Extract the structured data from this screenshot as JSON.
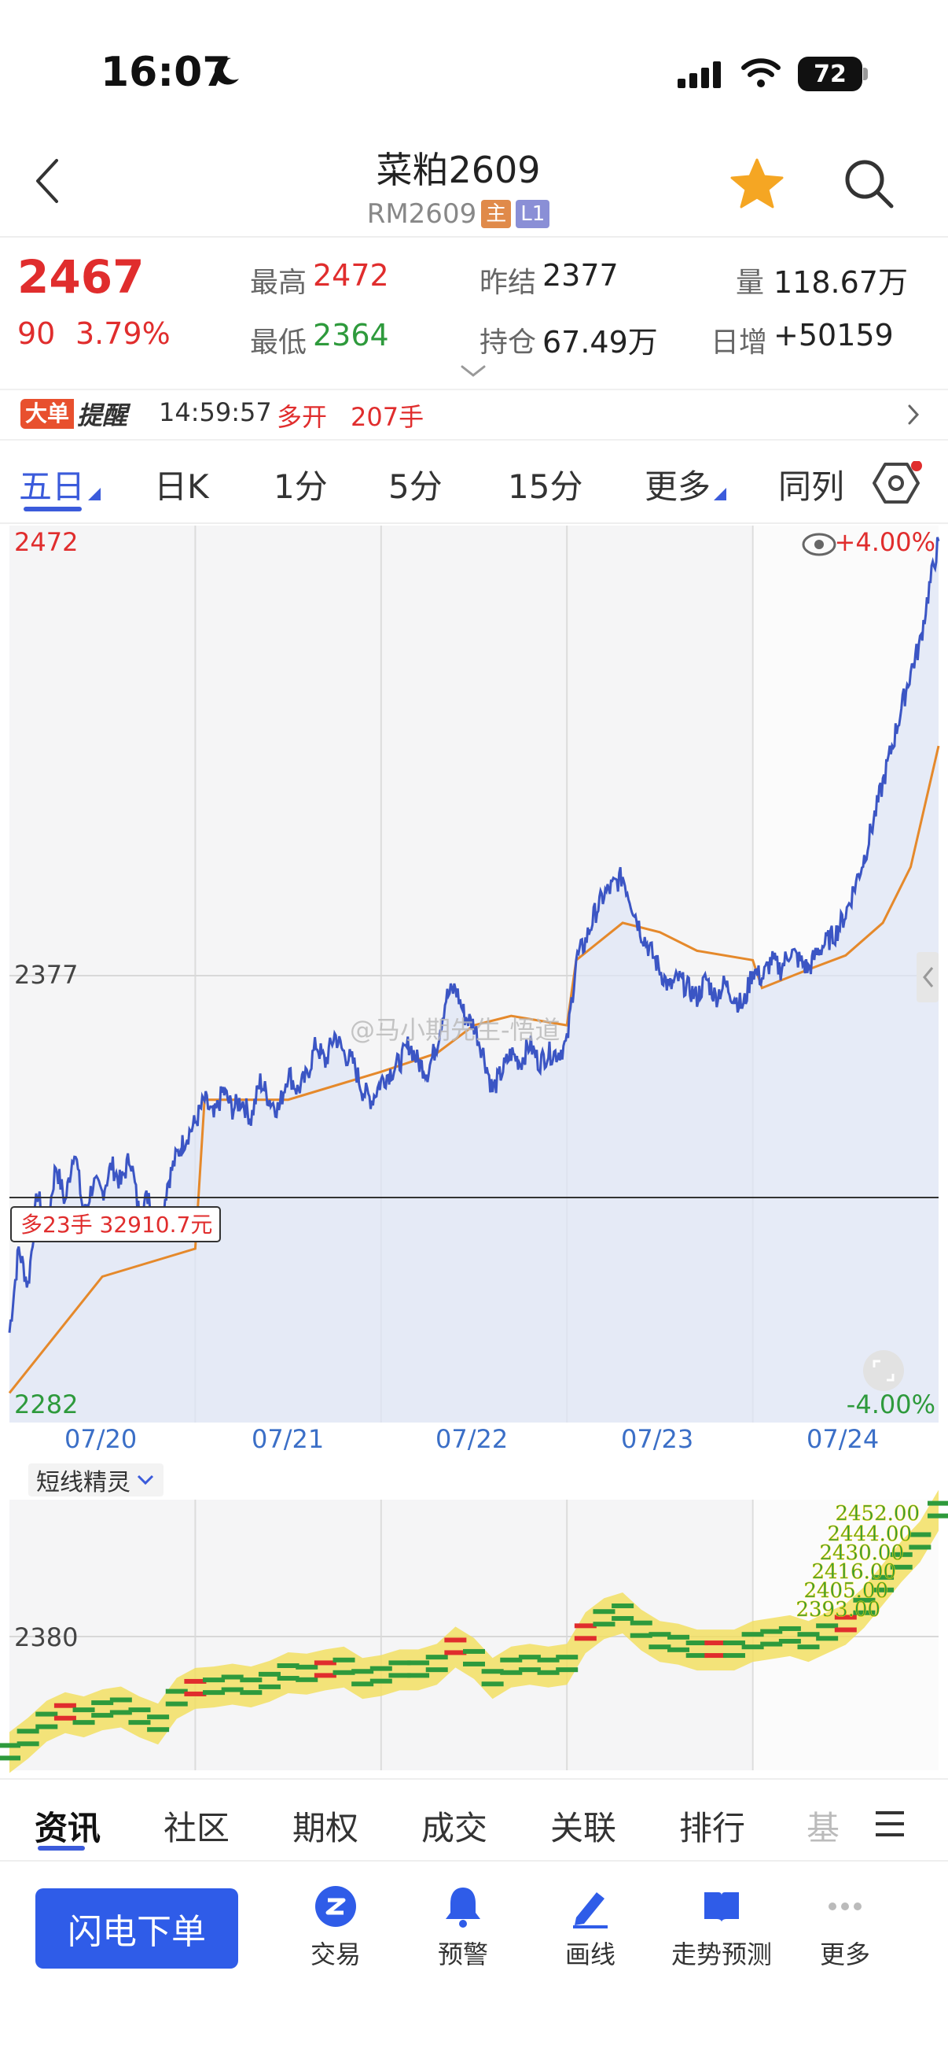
{
  "status_bar": {
    "time": "16:07",
    "battery": "72"
  },
  "header": {
    "title": "菜粕2609",
    "code": "RM2609",
    "tag_main": "主",
    "tag_level": "L1"
  },
  "quote": {
    "price": "2467",
    "change": "90",
    "change_pct": "3.79%",
    "high_label": "最高",
    "high": "2472",
    "low_label": "最低",
    "low": "2364",
    "prev_settle_label": "昨结",
    "prev_settle": "2377",
    "open_interest_label": "持仓",
    "open_interest": "67.49万",
    "volume_label": "量",
    "volume": "118.67万",
    "daily_inc_label": "日增",
    "daily_inc": "+50159"
  },
  "alert": {
    "badge": "大单",
    "badge2": "提醒",
    "time": "14:59:57",
    "action": "多开",
    "qty": "207手"
  },
  "tabs": [
    "五日",
    "日K",
    "1分",
    "5分",
    "15分",
    "更多",
    "同列"
  ],
  "chart": {
    "y_top": "2472",
    "y_mid": "2377",
    "y_bottom": "2282",
    "pct_top": "+4.00%",
    "pct_bottom": "-4.00%",
    "marker_text": "多23手 32910.7元",
    "watermark": "@马小期先生-悟道",
    "dates": [
      "07/20",
      "07/21",
      "07/22",
      "07/23",
      "07/24"
    ],
    "indicator": "短线精灵",
    "indicator_level": "2380",
    "indicator_values": [
      "2452.00",
      "2444.00",
      "2430.00",
      "2416.00",
      "2405.00",
      "2393.00"
    ],
    "colors": {
      "price": "#3b55c4",
      "avg": "#e5892b",
      "up": "#e02d2d",
      "down": "#2e9a3c"
    }
  },
  "chart_data": {
    "type": "line",
    "x": [
      "07/20",
      "07/21",
      "07/22",
      "07/23",
      "07/24"
    ],
    "ylim": [
      2282,
      2472
    ],
    "series": [],
    "price_path": [
      [
        0,
        2300
      ],
      [
        0.05,
        2318
      ],
      [
        0.1,
        2310
      ],
      [
        0.15,
        2330
      ],
      [
        0.2,
        2322
      ],
      [
        0.25,
        2336
      ],
      [
        0.3,
        2328
      ],
      [
        0.35,
        2340
      ],
      [
        0.4,
        2325
      ],
      [
        0.45,
        2332
      ],
      [
        0.5,
        2330
      ],
      [
        0.55,
        2336
      ],
      [
        0.6,
        2332
      ],
      [
        0.65,
        2338
      ],
      [
        0.7,
        2325
      ],
      [
        0.75,
        2330
      ],
      [
        0.8,
        2320
      ],
      [
        0.85,
        2332
      ],
      [
        0.9,
        2338
      ],
      [
        0.95,
        2342
      ],
      [
        1.0,
        2345
      ],
      [
        1.05,
        2350
      ],
      [
        1.1,
        2346
      ],
      [
        1.15,
        2352
      ],
      [
        1.2,
        2348
      ],
      [
        1.25,
        2350
      ],
      [
        1.3,
        2346
      ],
      [
        1.35,
        2354
      ],
      [
        1.4,
        2350
      ],
      [
        1.45,
        2348
      ],
      [
        1.5,
        2356
      ],
      [
        1.55,
        2352
      ],
      [
        1.6,
        2355
      ],
      [
        1.65,
        2362
      ],
      [
        1.7,
        2358
      ],
      [
        1.75,
        2364
      ],
      [
        1.8,
        2360
      ],
      [
        1.85,
        2358
      ],
      [
        1.9,
        2352
      ],
      [
        1.95,
        2350
      ],
      [
        2.0,
        2354
      ],
      [
        2.05,
        2356
      ],
      [
        2.1,
        2358
      ],
      [
        2.15,
        2362
      ],
      [
        2.2,
        2358
      ],
      [
        2.25,
        2356
      ],
      [
        2.3,
        2362
      ],
      [
        2.35,
        2372
      ],
      [
        2.4,
        2374
      ],
      [
        2.45,
        2368
      ],
      [
        2.5,
        2366
      ],
      [
        2.55,
        2360
      ],
      [
        2.6,
        2352
      ],
      [
        2.65,
        2356
      ],
      [
        2.7,
        2360
      ],
      [
        2.75,
        2358
      ],
      [
        2.8,
        2362
      ],
      [
        2.85,
        2358
      ],
      [
        2.9,
        2360
      ],
      [
        2.95,
        2360
      ],
      [
        3.0,
        2362
      ],
      [
        3.05,
        2380
      ],
      [
        3.1,
        2384
      ],
      [
        3.15,
        2390
      ],
      [
        3.2,
        2394
      ],
      [
        3.25,
        2396
      ],
      [
        3.3,
        2398
      ],
      [
        3.35,
        2392
      ],
      [
        3.4,
        2386
      ],
      [
        3.45,
        2382
      ],
      [
        3.5,
        2378
      ],
      [
        3.55,
        2374
      ],
      [
        3.6,
        2376
      ],
      [
        3.65,
        2374
      ],
      [
        3.7,
        2372
      ],
      [
        3.75,
        2376
      ],
      [
        3.8,
        2372
      ],
      [
        3.85,
        2375
      ],
      [
        3.9,
        2372
      ],
      [
        3.95,
        2370
      ],
      [
        4.0,
        2378
      ],
      [
        4.05,
        2376
      ],
      [
        4.1,
        2380
      ],
      [
        4.15,
        2378
      ],
      [
        4.2,
        2382
      ],
      [
        4.25,
        2380
      ],
      [
        4.3,
        2378
      ],
      [
        4.35,
        2382
      ],
      [
        4.4,
        2384
      ],
      [
        4.45,
        2386
      ],
      [
        4.5,
        2390
      ],
      [
        4.55,
        2396
      ],
      [
        4.6,
        2402
      ],
      [
        4.65,
        2410
      ],
      [
        4.7,
        2418
      ],
      [
        4.75,
        2426
      ],
      [
        4.8,
        2434
      ],
      [
        4.85,
        2442
      ],
      [
        4.9,
        2448
      ],
      [
        4.95,
        2460
      ],
      [
        5.0,
        2470
      ]
    ],
    "avg_path": [
      [
        0,
        2287
      ],
      [
        0.5,
        2312
      ],
      [
        1.0,
        2318
      ],
      [
        1.05,
        2350
      ],
      [
        1.5,
        2350
      ],
      [
        2.0,
        2356
      ],
      [
        2.3,
        2360
      ],
      [
        2.5,
        2366
      ],
      [
        2.7,
        2368
      ],
      [
        3.0,
        2366
      ],
      [
        3.05,
        2380
      ],
      [
        3.3,
        2388
      ],
      [
        3.5,
        2386
      ],
      [
        3.7,
        2382
      ],
      [
        4.0,
        2380
      ],
      [
        4.05,
        2374
      ],
      [
        4.3,
        2378
      ],
      [
        4.5,
        2381
      ],
      [
        4.7,
        2388
      ],
      [
        4.85,
        2400
      ],
      [
        5.0,
        2426
      ]
    ],
    "marker_y": 2329
  },
  "bottom_tabs": [
    "资讯",
    "社区",
    "期权",
    "成交",
    "关联",
    "排行",
    "基"
  ],
  "actions": {
    "flash_order": "闪电下单",
    "trade": "交易",
    "warning": "预警",
    "draw": "画线",
    "forecast": "走势预测",
    "more": "更多"
  }
}
